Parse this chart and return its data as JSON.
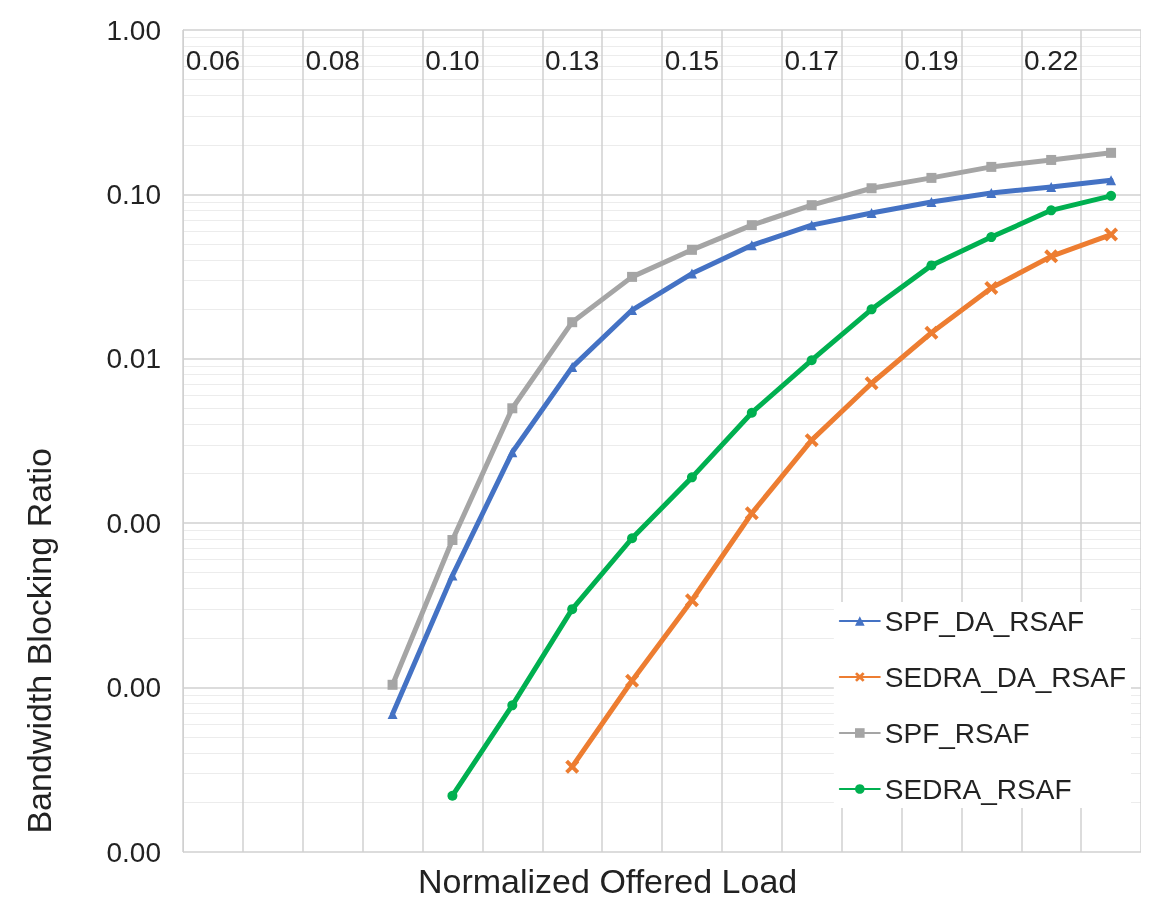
{
  "chart_data": {
    "type": "line",
    "xlabel": "Normalized Offered Load",
    "ylabel": "Bandwidth Blocking Ratio",
    "categories": [
      "0.06",
      null,
      "0.08",
      null,
      "0.10",
      null,
      "0.13",
      null,
      "0.15",
      null,
      "0.17",
      null,
      "0.19",
      null,
      "0.22",
      null
    ],
    "series": [
      {
        "name": "SPF_DA_RSAF",
        "color": "#4472c4",
        "marker": "triangle",
        "values": [
          null,
          null,
          null,
          6.9e-05,
          0.00048,
          0.0027,
          0.0089,
          0.0198,
          0.033,
          0.049,
          0.065,
          0.077,
          0.09,
          0.102,
          0.111,
          0.122
        ]
      },
      {
        "name": "SEDRA_DA_RSAF",
        "color": "#ed7d31",
        "marker": "cross",
        "values": [
          null,
          null,
          null,
          null,
          null,
          null,
          3.3e-05,
          0.00011,
          0.00034,
          0.00115,
          0.0032,
          0.0071,
          0.0144,
          0.027,
          0.042,
          0.057
        ]
      },
      {
        "name": "SPF_RSAF",
        "color": "#a5a5a5",
        "marker": "square",
        "values": [
          null,
          null,
          null,
          0.000104,
          0.00079,
          0.005,
          0.0167,
          0.0315,
          0.046,
          0.065,
          0.086,
          0.109,
          0.126,
          0.147,
          0.162,
          0.179
        ]
      },
      {
        "name": "SEDRA_RSAF",
        "color": "#00b050",
        "marker": "circle",
        "values": [
          null,
          null,
          null,
          null,
          2.2e-05,
          7.8e-05,
          0.0003,
          0.00081,
          0.0019,
          0.0047,
          0.0098,
          0.02,
          0.037,
          0.055,
          0.08,
          0.098
        ]
      }
    ],
    "log": "y",
    "ylim": [
      1e-05,
      1
    ],
    "yticks": [
      {
        "value": 1e-05,
        "label": "0.00"
      },
      {
        "value": 0.0001,
        "label": "0.00"
      },
      {
        "value": 0.001,
        "label": "0.00"
      },
      {
        "value": 0.01,
        "label": "0.01"
      },
      {
        "value": 0.1,
        "label": "0.10"
      },
      {
        "value": 1,
        "label": "1.00"
      }
    ],
    "grid": true,
    "legend": "bottom right",
    "line_style": "solid"
  }
}
